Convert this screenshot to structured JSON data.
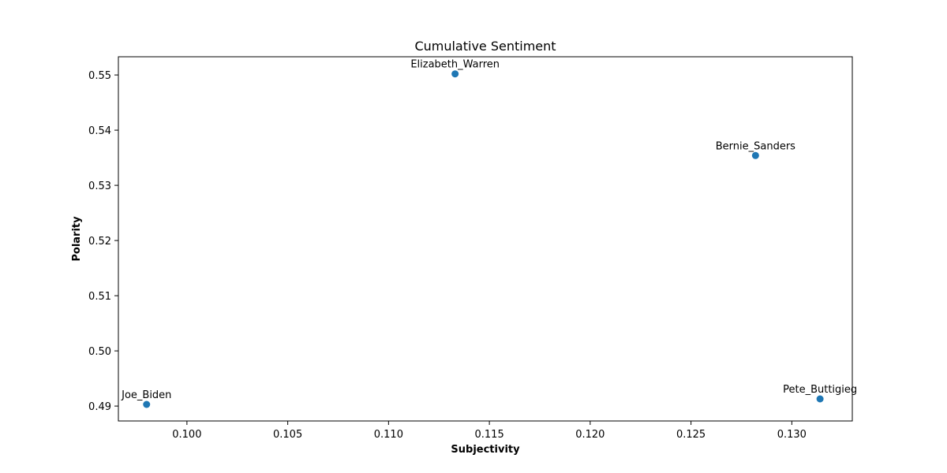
{
  "chart_data": {
    "type": "scatter",
    "title": "Cumulative Sentiment",
    "xlabel": "Subjectivity",
    "ylabel": "Polarity",
    "xlim": [
      0.0966,
      0.133
    ],
    "ylim": [
      0.4873,
      0.5533
    ],
    "xticks": [
      0.1,
      0.105,
      0.11,
      0.115,
      0.12,
      0.125,
      0.13
    ],
    "xtick_labels": [
      "0.100",
      "0.105",
      "0.110",
      "0.115",
      "0.120",
      "0.125",
      "0.130"
    ],
    "yticks": [
      0.49,
      0.5,
      0.51,
      0.52,
      0.53,
      0.54,
      0.55
    ],
    "ytick_labels": [
      "0.49",
      "0.50",
      "0.51",
      "0.52",
      "0.53",
      "0.54",
      "0.55"
    ],
    "grid": false,
    "marker_color": "#1f77b4",
    "points": [
      {
        "label": "Elizabeth_Warren",
        "x": 0.1133,
        "y": 0.5502
      },
      {
        "label": "Bernie_Sanders",
        "x": 0.1282,
        "y": 0.5354
      },
      {
        "label": "Joe_Biden",
        "x": 0.098,
        "y": 0.4903
      },
      {
        "label": "Pete_Buttigieg",
        "x": 0.1314,
        "y": 0.4913
      }
    ]
  }
}
